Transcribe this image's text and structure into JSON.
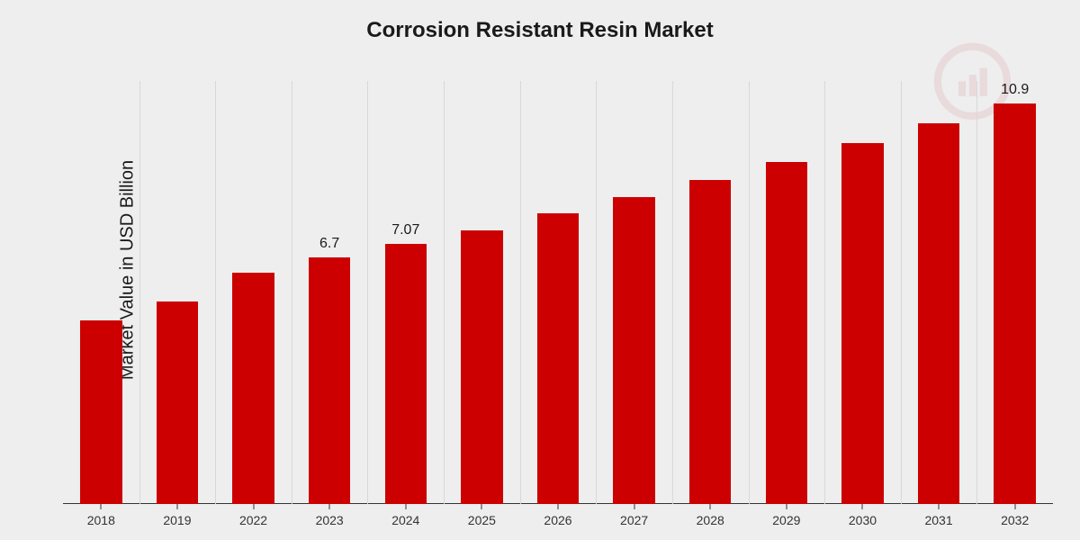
{
  "chart": {
    "type": "bar",
    "title": "Corrosion Resistant Resin Market",
    "title_fontsize": 24,
    "ylabel": "Market Value in USD Billion",
    "ylabel_fontsize": 20,
    "background_color": "#eeeeef",
    "grid_color": "#d8d8da",
    "axis_color": "#333333",
    "bar_color": "#cc0000",
    "bar_width_ratio": 0.55,
    "xtick_fontsize": 14,
    "value_label_fontsize": 16,
    "categories": [
      "2018",
      "2019",
      "2022",
      "2023",
      "2024",
      "2025",
      "2026",
      "2027",
      "2028",
      "2029",
      "2030",
      "2031",
      "2032"
    ],
    "values": [
      5.0,
      5.5,
      6.3,
      6.7,
      7.07,
      7.45,
      7.9,
      8.35,
      8.8,
      9.3,
      9.8,
      10.35,
      10.9
    ],
    "value_labels": {
      "3": "6.7",
      "4": "7.07",
      "12": "10.9"
    },
    "ylim": [
      0,
      11.5
    ]
  },
  "watermark": {
    "name": "logo-watermark",
    "circle_color": "#b30000",
    "bar_colors": [
      "#b30000",
      "#b30000",
      "#b30000"
    ],
    "handle_color": "#b30000"
  }
}
